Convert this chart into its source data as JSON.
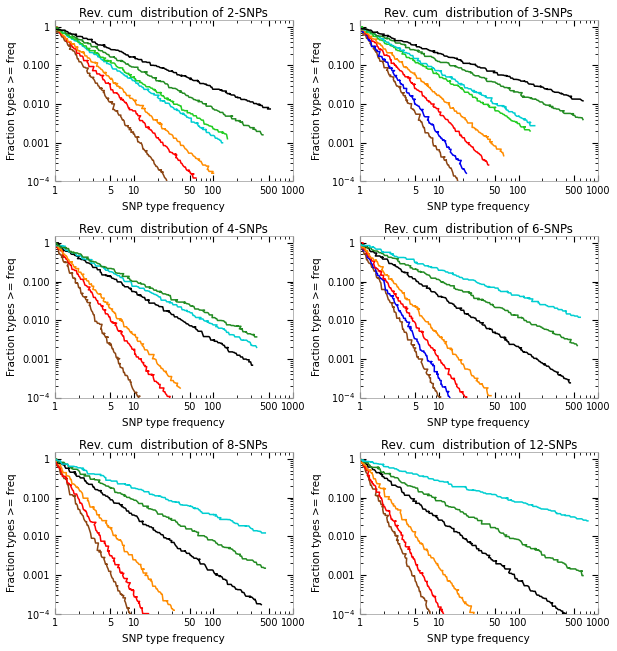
{
  "titles": [
    "Rev. cum  distribution of 2-SNPs",
    "Rev. cum  distribution of 3-SNPs",
    "Rev. cum  distribution of 4-SNPs",
    "Rev. cum  distribution of 6-SNPs",
    "Rev. cum  distribution of 8-SNPs",
    "Rev. cum  distribution of 12-SNPs"
  ],
  "xlabel": "SNP type frequency",
  "ylabel": "Fraction types >= freq",
  "xlim": [
    1,
    1000
  ],
  "ylim": [
    0.0001,
    2
  ],
  "title_fontsize": 8.5,
  "label_fontsize": 7.5,
  "tick_fontsize": 7,
  "linewidth": 1.1,
  "background_color": "#ffffff",
  "subplot_configs": [
    {
      "panel": "2-SNPs",
      "curves": [
        {
          "color": "#8B4513",
          "xmax": 40,
          "slope": 2.8,
          "noise": 0.08
        },
        {
          "color": "#FF0000",
          "xmax": 60,
          "slope": 2.2,
          "noise": 0.07
        },
        {
          "color": "#FF8C00",
          "xmax": 100,
          "slope": 1.9,
          "noise": 0.07
        },
        {
          "color": "#00CED1",
          "xmax": 130,
          "slope": 1.4,
          "noise": 0.06
        },
        {
          "color": "#22CC22",
          "xmax": 150,
          "slope": 1.3,
          "noise": 0.07
        },
        {
          "color": "#228B22",
          "xmax": 420,
          "slope": 1.05,
          "noise": 0.06
        },
        {
          "color": "#000000",
          "xmax": 520,
          "slope": 0.78,
          "noise": 0.05
        }
      ]
    },
    {
      "panel": "3-SNPs",
      "curves": [
        {
          "color": "#8B4513",
          "xmax": 18,
          "slope": 3.2,
          "noise": 0.09
        },
        {
          "color": "#0000EE",
          "xmax": 22,
          "slope": 2.8,
          "noise": 0.08
        },
        {
          "color": "#FF0000",
          "xmax": 42,
          "slope": 2.2,
          "noise": 0.08
        },
        {
          "color": "#FF8C00",
          "xmax": 65,
          "slope": 1.8,
          "noise": 0.07
        },
        {
          "color": "#22CC22",
          "xmax": 140,
          "slope": 1.25,
          "noise": 0.07
        },
        {
          "color": "#00CED1",
          "xmax": 160,
          "slope": 1.15,
          "noise": 0.07
        },
        {
          "color": "#228B22",
          "xmax": 650,
          "slope": 0.85,
          "noise": 0.06
        },
        {
          "color": "#000000",
          "xmax": 650,
          "slope": 0.68,
          "noise": 0.05
        }
      ]
    },
    {
      "panel": "4-SNPs",
      "curves": [
        {
          "color": "#8B4513",
          "xmax": 13,
          "slope": 3.8,
          "noise": 0.1
        },
        {
          "color": "#FF0000",
          "xmax": 32,
          "slope": 2.8,
          "noise": 0.09
        },
        {
          "color": "#FF8C00",
          "xmax": 38,
          "slope": 2.4,
          "noise": 0.08
        },
        {
          "color": "#000000",
          "xmax": 310,
          "slope": 1.25,
          "noise": 0.07
        },
        {
          "color": "#00CED1",
          "xmax": 350,
          "slope": 1.05,
          "noise": 0.07
        },
        {
          "color": "#228B22",
          "xmax": 350,
          "slope": 0.95,
          "noise": 0.07
        }
      ]
    },
    {
      "panel": "6-SNPs",
      "curves": [
        {
          "color": "#8B4513",
          "xmax": 20,
          "slope": 4.0,
          "noise": 0.11
        },
        {
          "color": "#0000EE",
          "xmax": 14,
          "slope": 3.5,
          "noise": 0.1
        },
        {
          "color": "#FF0000",
          "xmax": 28,
          "slope": 3.0,
          "noise": 0.09
        },
        {
          "color": "#FF8C00",
          "xmax": 45,
          "slope": 2.4,
          "noise": 0.09
        },
        {
          "color": "#000000",
          "xmax": 450,
          "slope": 1.35,
          "noise": 0.07
        },
        {
          "color": "#228B22",
          "xmax": 550,
          "slope": 0.95,
          "noise": 0.07
        },
        {
          "color": "#00CED1",
          "xmax": 600,
          "slope": 0.68,
          "noise": 0.06
        }
      ]
    },
    {
      "panel": "8-SNPs",
      "curves": [
        {
          "color": "#8B4513",
          "xmax": 16,
          "slope": 4.2,
          "noise": 0.11
        },
        {
          "color": "#FF0000",
          "xmax": 18,
          "slope": 3.5,
          "noise": 0.1
        },
        {
          "color": "#FF8C00",
          "xmax": 32,
          "slope": 2.6,
          "noise": 0.09
        },
        {
          "color": "#000000",
          "xmax": 400,
          "slope": 1.45,
          "noise": 0.08
        },
        {
          "color": "#228B22",
          "xmax": 450,
          "slope": 1.05,
          "noise": 0.08
        },
        {
          "color": "#00CED1",
          "xmax": 450,
          "slope": 0.72,
          "noise": 0.07
        }
      ]
    },
    {
      "panel": "12-SNPs",
      "curves": [
        {
          "color": "#8B4513",
          "xmax": 12,
          "slope": 4.5,
          "noise": 0.11
        },
        {
          "color": "#FF0000",
          "xmax": 14,
          "slope": 3.8,
          "noise": 0.1
        },
        {
          "color": "#FF8C00",
          "xmax": 32,
          "slope": 2.8,
          "noise": 0.09
        },
        {
          "color": "#000000",
          "xmax": 550,
          "slope": 1.55,
          "noise": 0.08
        },
        {
          "color": "#228B22",
          "xmax": 650,
          "slope": 1.05,
          "noise": 0.08
        },
        {
          "color": "#00CED1",
          "xmax": 750,
          "slope": 0.55,
          "noise": 0.06
        }
      ]
    }
  ]
}
